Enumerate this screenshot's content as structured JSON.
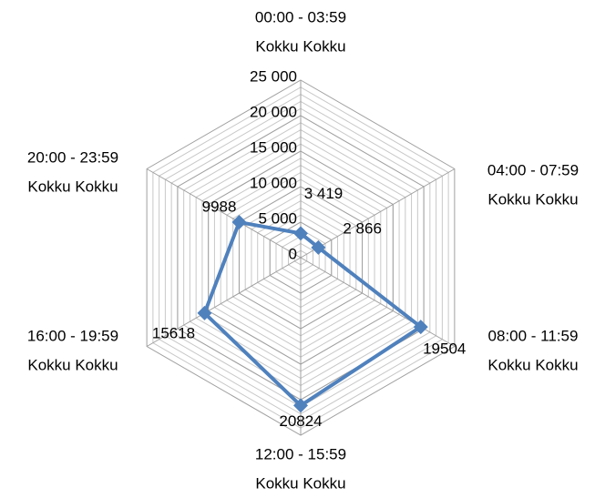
{
  "chart_data": {
    "type": "radar",
    "categories": [
      [
        "00:00 - 03:59",
        "Kokku Kokku"
      ],
      [
        "04:00 - 07:59",
        "Kokku Kokku"
      ],
      [
        "08:00 - 11:59",
        "Kokku Kokku"
      ],
      [
        "12:00 - 15:59",
        "Kokku Kokku"
      ],
      [
        "16:00 - 19:59",
        "Kokku Kokku"
      ],
      [
        "20:00 - 23:59",
        "Kokku Kokku"
      ]
    ],
    "values": [
      3419,
      2866,
      19504,
      20824,
      15618,
      9988
    ],
    "value_labels": [
      "3 419",
      "2 866",
      "19504",
      "20824",
      "15618",
      "9988"
    ],
    "color": "#4f81bd",
    "ylim": [
      0,
      25000
    ],
    "yticks": [
      0,
      {
        "value": 5000,
        "label": "5 000"
      },
      {
        "value": 10000,
        "label": "10 000"
      },
      {
        "value": 15000,
        "label": "15 000"
      },
      {
        "value": 20000,
        "label": "20 000"
      },
      {
        "value": 25000,
        "label": "25 000"
      }
    ],
    "minor_grid_step": 1000,
    "grid": true
  }
}
